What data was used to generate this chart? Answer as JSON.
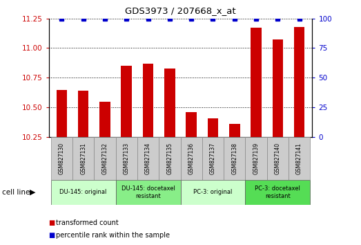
{
  "title": "GDS3973 / 207668_x_at",
  "samples": [
    "GSM827130",
    "GSM827131",
    "GSM827132",
    "GSM827133",
    "GSM827134",
    "GSM827135",
    "GSM827136",
    "GSM827137",
    "GSM827138",
    "GSM827139",
    "GSM827140",
    "GSM827141"
  ],
  "bar_values": [
    10.65,
    10.64,
    10.55,
    10.85,
    10.87,
    10.83,
    10.46,
    10.41,
    10.36,
    11.17,
    11.07,
    11.18
  ],
  "percentile_values": [
    100,
    100,
    100,
    100,
    100,
    100,
    100,
    100,
    100,
    100,
    100,
    100
  ],
  "bar_color": "#cc0000",
  "dot_color": "#0000cc",
  "ylim_left": [
    10.25,
    11.25
  ],
  "ylim_right": [
    0,
    100
  ],
  "yticks_left": [
    10.25,
    10.5,
    10.75,
    11.0,
    11.25
  ],
  "yticks_right": [
    0,
    25,
    50,
    75,
    100
  ],
  "cell_groups": [
    {
      "label": "DU-145: original",
      "start": 0,
      "end": 3,
      "color": "#ccffcc"
    },
    {
      "label": "DU-145: docetaxel\nresistant",
      "start": 3,
      "end": 6,
      "color": "#88ee88"
    },
    {
      "label": "PC-3: original",
      "start": 6,
      "end": 9,
      "color": "#ccffcc"
    },
    {
      "label": "PC-3: docetaxel\nresistant",
      "start": 9,
      "end": 12,
      "color": "#55dd55"
    }
  ],
  "cell_line_label": "cell line",
  "legend_bar_label": "transformed count",
  "legend_dot_label": "percentile rank within the sample",
  "tick_box_color": "#cccccc",
  "bar_width": 0.5
}
